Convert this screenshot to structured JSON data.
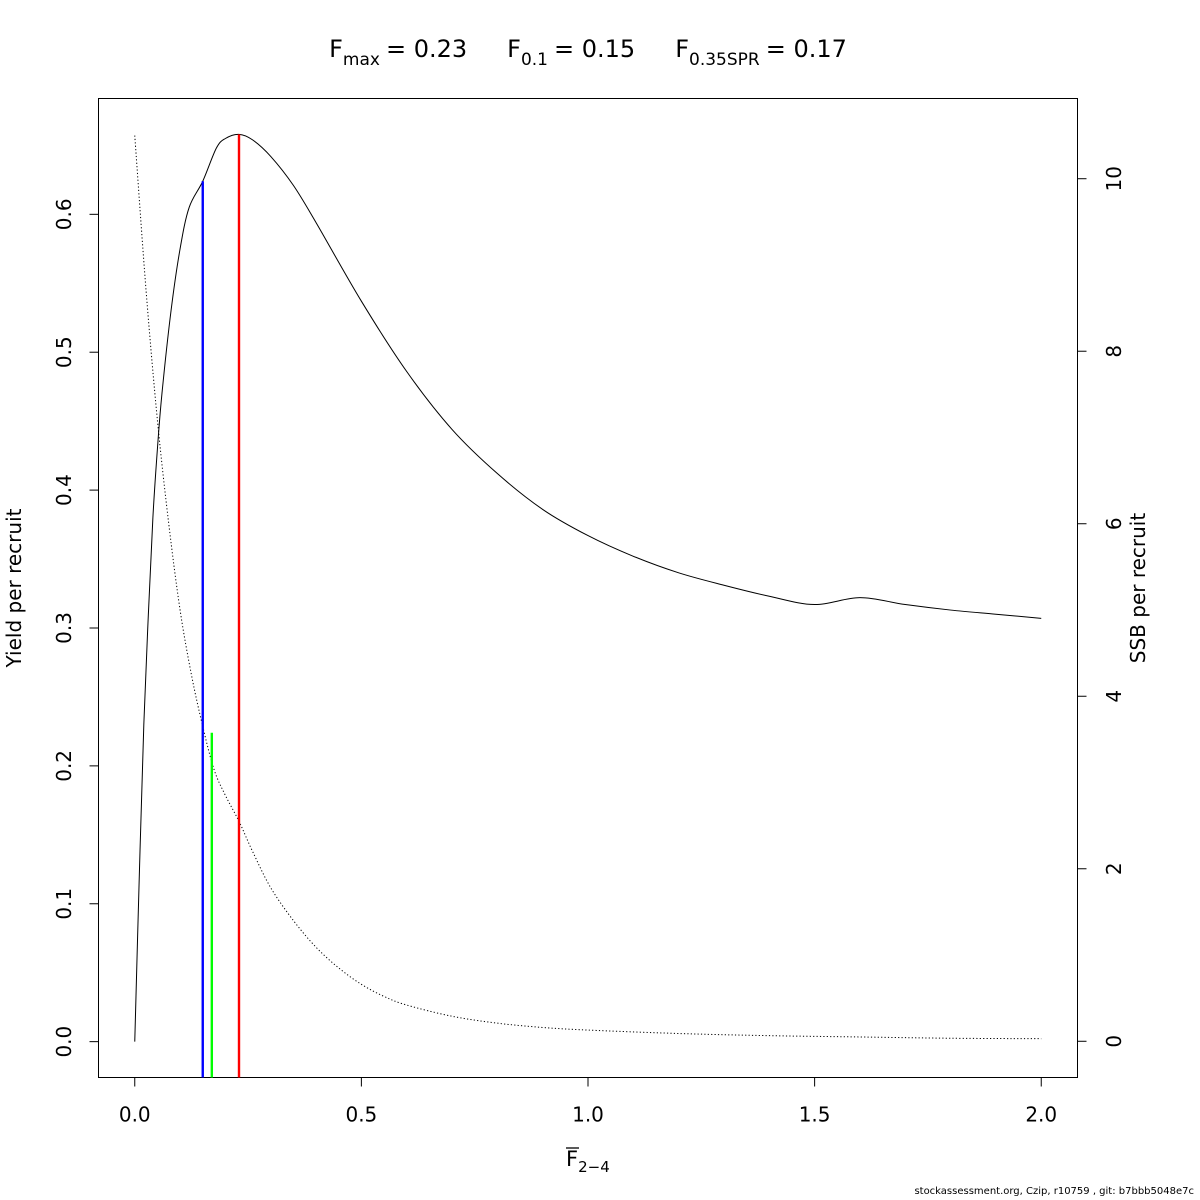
{
  "chart_data": {
    "type": "line",
    "title": {
      "fmax": {
        "base": "F",
        "sub": "max",
        "value": "= 0.23"
      },
      "f01": {
        "base": "F",
        "sub": "0.1",
        "value": "= 0.15"
      },
      "fspr": {
        "base": "F",
        "sub": "0.35SPR",
        "value": "= 0.17"
      }
    },
    "xlabel": {
      "base": "F",
      "sub": "2−4"
    },
    "ylabel_left": "Yield per recruit",
    "ylabel_right": "SSB per recruit",
    "xlim": [
      -0.08,
      2.08
    ],
    "ylim_left": [
      -0.026,
      0.684
    ],
    "ylim_right": [
      -0.42,
      10.93
    ],
    "x_ticks": [
      "0.0",
      "0.5",
      "1.0",
      "1.5",
      "2.0"
    ],
    "y_left_ticks": [
      "0.0",
      "0.1",
      "0.2",
      "0.3",
      "0.4",
      "0.5",
      "0.6"
    ],
    "y_right_ticks": [
      "0",
      "2",
      "4",
      "6",
      "8",
      "10"
    ],
    "series": [
      {
        "axis": "left",
        "style": "solid",
        "x": [
          0.0,
          0.01,
          0.02,
          0.03,
          0.04,
          0.05,
          0.06,
          0.08,
          0.1,
          0.12,
          0.15,
          0.18,
          0.2,
          0.23,
          0.26,
          0.3,
          0.35,
          0.4,
          0.5,
          0.6,
          0.7,
          0.8,
          0.9,
          1.0,
          1.1,
          1.2,
          1.3,
          1.4,
          1.5,
          1.6,
          1.7,
          1.8,
          1.9,
          2.0
        ],
        "y": [
          0.0,
          0.12,
          0.23,
          0.31,
          0.38,
          0.43,
          0.47,
          0.53,
          0.575,
          0.605,
          0.624,
          0.648,
          0.655,
          0.658,
          0.654,
          0.642,
          0.621,
          0.594,
          0.537,
          0.486,
          0.444,
          0.412,
          0.386,
          0.367,
          0.352,
          0.34,
          0.331,
          0.323,
          0.317,
          0.322,
          0.317,
          0.313,
          0.31,
          0.307
        ]
      },
      {
        "axis": "right",
        "style": "dotted",
        "x": [
          0.0,
          0.025,
          0.05,
          0.075,
          0.1,
          0.125,
          0.15,
          0.175,
          0.2,
          0.23,
          0.26,
          0.3,
          0.35,
          0.4,
          0.45,
          0.5,
          0.55,
          0.6,
          0.7,
          0.8,
          0.9,
          1.0,
          1.2,
          1.4,
          1.6,
          1.8,
          2.0
        ],
        "y": [
          10.5,
          8.7,
          7.2,
          6.0,
          5.0,
          4.25,
          3.65,
          3.15,
          2.85,
          2.55,
          2.2,
          1.78,
          1.4,
          1.09,
          0.85,
          0.66,
          0.52,
          0.42,
          0.29,
          0.21,
          0.16,
          0.13,
          0.09,
          0.065,
          0.05,
          0.035,
          0.03
        ]
      }
    ],
    "reference_lines": [
      {
        "name": "F0.1",
        "x": 0.15,
        "y_top": 0.624,
        "color": "#0000ff"
      },
      {
        "name": "F0.35SPR",
        "x": 0.17,
        "y_top": 0.224,
        "color": "#00ff00"
      },
      {
        "name": "Fmax",
        "x": 0.23,
        "y_top": 0.658,
        "color": "#ff0000"
      }
    ]
  },
  "footer": "stockassessment.org, Czip, r10759 , git: b7bbb5048e7c"
}
